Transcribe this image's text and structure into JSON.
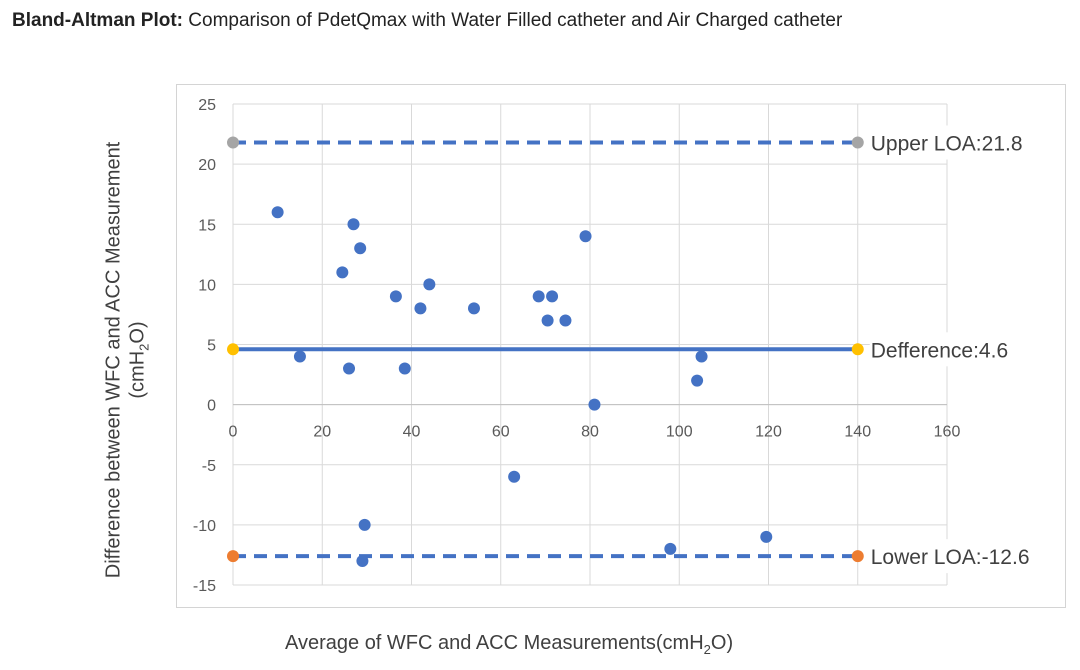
{
  "title": {
    "bold": "Bland-Altman Plot:",
    "rest": " Comparison of PdetQmax with Water Filled catheter and Air Charged catheter"
  },
  "axes": {
    "ylabel_line1": "Difference between WFC and ACC Measurement",
    "ylabel_line2_pre": "(cmH",
    "ylabel_line2_sub": "2",
    "ylabel_line2_post": "O)",
    "xlabel_pre": "Average of WFC and ACC Measurements(cmH",
    "xlabel_sub": "2",
    "xlabel_post": "O)"
  },
  "chart_data": {
    "type": "scatter",
    "xlim": [
      0,
      160
    ],
    "ylim": [
      -15,
      25
    ],
    "x_ticks": [
      "0",
      "20",
      "40",
      "60",
      "80",
      "100",
      "120",
      "140",
      "160"
    ],
    "y_ticks": [
      "25",
      "20",
      "15",
      "10",
      "5",
      "0",
      "-5",
      "-10",
      "-15"
    ],
    "grid": true,
    "points": [
      {
        "x": 10,
        "y": 16
      },
      {
        "x": 15,
        "y": 4
      },
      {
        "x": 24.5,
        "y": 11
      },
      {
        "x": 26,
        "y": 3
      },
      {
        "x": 27,
        "y": 15
      },
      {
        "x": 28.5,
        "y": 13
      },
      {
        "x": 29,
        "y": -13
      },
      {
        "x": 29.5,
        "y": -10
      },
      {
        "x": 36.5,
        "y": 9
      },
      {
        "x": 38.5,
        "y": 3
      },
      {
        "x": 42,
        "y": 8
      },
      {
        "x": 44,
        "y": 10
      },
      {
        "x": 54,
        "y": 8
      },
      {
        "x": 63,
        "y": -6
      },
      {
        "x": 68.5,
        "y": 9
      },
      {
        "x": 70.5,
        "y": 7
      },
      {
        "x": 71.5,
        "y": 9
      },
      {
        "x": 74.5,
        "y": 7
      },
      {
        "x": 79,
        "y": 14
      },
      {
        "x": 81,
        "y": 0
      },
      {
        "x": 98,
        "y": -12
      },
      {
        "x": 104,
        "y": 2
      },
      {
        "x": 105,
        "y": 4
      },
      {
        "x": 119.5,
        "y": -11
      }
    ],
    "reference_lines": [
      {
        "label": "Upper LOA:21.8",
        "y": 21.8,
        "x_from": 0,
        "x_to": 140,
        "style": "dashed",
        "marker_color": "#a5a5a5"
      },
      {
        "label": "Defference:4.6",
        "y": 4.6,
        "x_from": 0,
        "x_to": 140,
        "style": "solid",
        "marker_color": "#ffc000"
      },
      {
        "label": "Lower LOA:-12.6",
        "y": -12.6,
        "x_from": 0,
        "x_to": 140,
        "style": "dashed",
        "marker_color": "#ed7d31"
      }
    ],
    "colors": {
      "points": "#4472c4",
      "lines": "#4472c4",
      "grid": "#d9d9d9"
    }
  }
}
